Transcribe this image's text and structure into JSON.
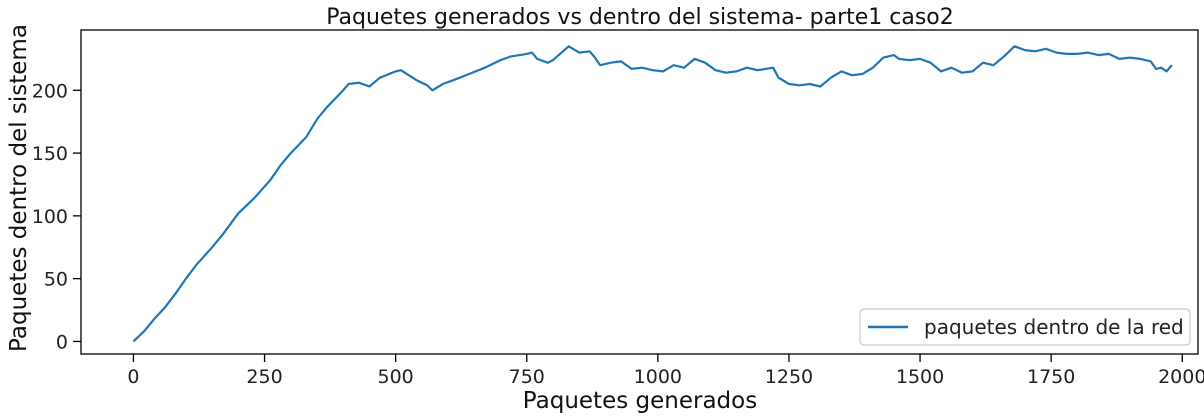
{
  "chart_data": {
    "type": "line",
    "title": "Paquetes generados vs dentro del sistema- parte1 caso2",
    "xlabel": "Paquetes generados",
    "ylabel": "Paquetes dentro del sistema",
    "xlim": [
      -100,
      2030
    ],
    "ylim": [
      -10,
      248
    ],
    "xticks": [
      0,
      250,
      500,
      750,
      1000,
      1250,
      1500,
      1750,
      2000
    ],
    "yticks": [
      0,
      50,
      100,
      150,
      200
    ],
    "grid": false,
    "legend_position": "lower-right",
    "series": [
      {
        "name": "paquetes dentro de la red",
        "color": "#1f77b4",
        "points": [
          [
            0,
            0
          ],
          [
            20,
            8
          ],
          [
            40,
            18
          ],
          [
            60,
            27
          ],
          [
            80,
            38
          ],
          [
            100,
            50
          ],
          [
            120,
            61
          ],
          [
            150,
            75
          ],
          [
            170,
            85
          ],
          [
            200,
            102
          ],
          [
            230,
            114
          ],
          [
            260,
            128
          ],
          [
            280,
            140
          ],
          [
            300,
            150
          ],
          [
            330,
            163
          ],
          [
            350,
            177
          ],
          [
            370,
            187
          ],
          [
            400,
            200
          ],
          [
            410,
            205
          ],
          [
            430,
            206
          ],
          [
            450,
            203
          ],
          [
            470,
            210
          ],
          [
            500,
            215
          ],
          [
            510,
            216
          ],
          [
            540,
            208
          ],
          [
            560,
            204
          ],
          [
            570,
            200
          ],
          [
            590,
            205
          ],
          [
            610,
            208
          ],
          [
            640,
            213
          ],
          [
            670,
            218
          ],
          [
            700,
            224
          ],
          [
            720,
            227
          ],
          [
            750,
            229
          ],
          [
            760,
            230
          ],
          [
            770,
            225
          ],
          [
            790,
            222
          ],
          [
            800,
            224
          ],
          [
            830,
            235
          ],
          [
            850,
            230
          ],
          [
            870,
            231
          ],
          [
            880,
            226
          ],
          [
            890,
            220
          ],
          [
            910,
            222
          ],
          [
            930,
            223
          ],
          [
            950,
            217
          ],
          [
            970,
            218
          ],
          [
            990,
            216
          ],
          [
            1010,
            215
          ],
          [
            1030,
            220
          ],
          [
            1050,
            218
          ],
          [
            1070,
            225
          ],
          [
            1090,
            222
          ],
          [
            1110,
            216
          ],
          [
            1130,
            214
          ],
          [
            1150,
            215
          ],
          [
            1170,
            218
          ],
          [
            1190,
            216
          ],
          [
            1220,
            218
          ],
          [
            1230,
            210
          ],
          [
            1250,
            205
          ],
          [
            1270,
            204
          ],
          [
            1290,
            205
          ],
          [
            1310,
            203
          ],
          [
            1330,
            210
          ],
          [
            1350,
            215
          ],
          [
            1370,
            212
          ],
          [
            1390,
            213
          ],
          [
            1410,
            218
          ],
          [
            1430,
            226
          ],
          [
            1450,
            228
          ],
          [
            1460,
            225
          ],
          [
            1480,
            224
          ],
          [
            1500,
            225
          ],
          [
            1520,
            222
          ],
          [
            1540,
            215
          ],
          [
            1560,
            218
          ],
          [
            1580,
            214
          ],
          [
            1600,
            215
          ],
          [
            1620,
            222
          ],
          [
            1640,
            220
          ],
          [
            1660,
            227
          ],
          [
            1680,
            235
          ],
          [
            1700,
            232
          ],
          [
            1720,
            231
          ],
          [
            1740,
            233
          ],
          [
            1760,
            230
          ],
          [
            1780,
            229
          ],
          [
            1800,
            229
          ],
          [
            1820,
            230
          ],
          [
            1840,
            228
          ],
          [
            1860,
            229
          ],
          [
            1880,
            225
          ],
          [
            1900,
            226
          ],
          [
            1920,
            225
          ],
          [
            1940,
            223
          ],
          [
            1950,
            217
          ],
          [
            1960,
            218
          ],
          [
            1970,
            215
          ],
          [
            1980,
            220
          ]
        ]
      }
    ]
  }
}
